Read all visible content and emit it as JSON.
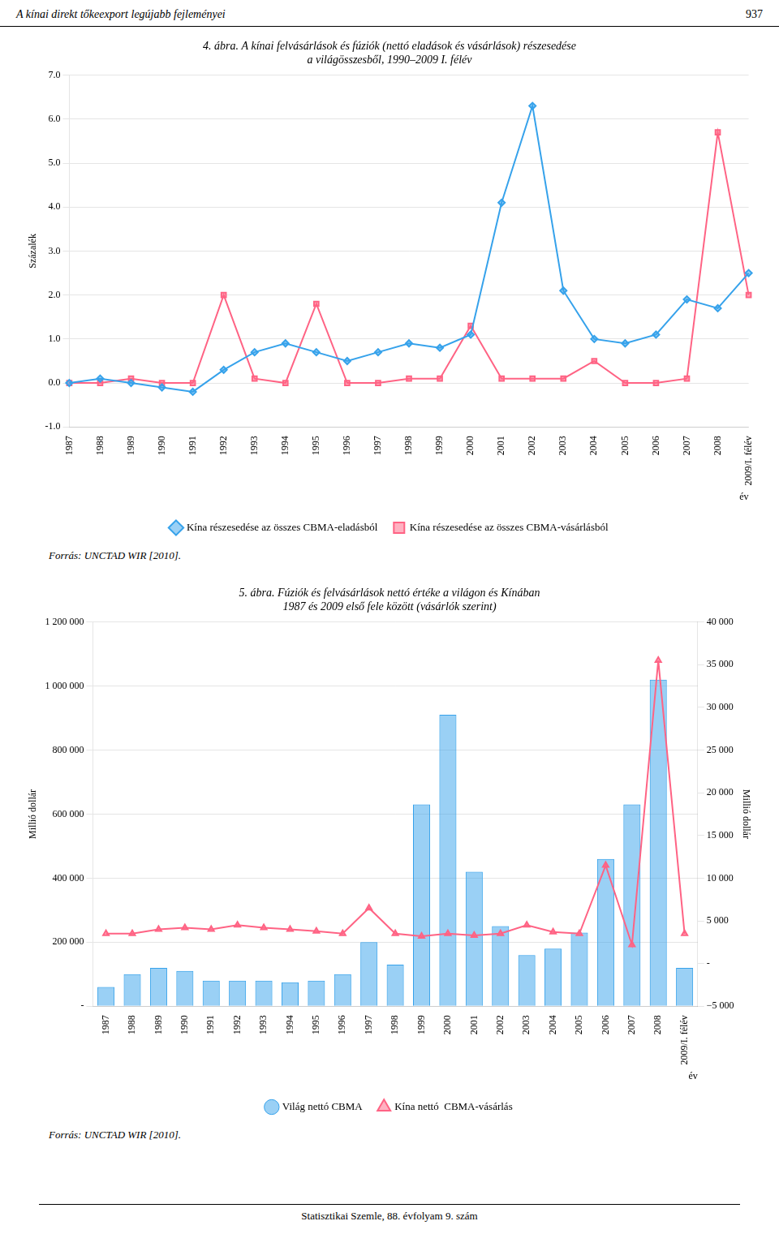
{
  "header": [
    "A kínai direkt tőkeexport legújabb fejleményei",
    "937"
  ],
  "footer": "Statisztikai Szemle, 88. évfolyam 9. szám",
  "chart_data": [
    {
      "type": "line",
      "title": [
        "4. ábra. A kínai felvásárlások és fúziók (nettó eladások és vásárlások) részesedése",
        "a világösszesből, 1990–2009 I. félév"
      ],
      "ylabel": "Százalék",
      "xlabel": "év",
      "categories": [
        "1987",
        "1988",
        "1989",
        "1990",
        "1991",
        "1992",
        "1993",
        "1994",
        "1995",
        "1996",
        "1997",
        "1998",
        "1999",
        "2000",
        "2001",
        "2002",
        "2003",
        "2004",
        "2005",
        "2006",
        "2007",
        "2008",
        "2009/I. félév"
      ],
      "series": [
        {
          "name": "Kína részesedése az összes CBMA-eladásból",
          "marker": "diamond",
          "values": [
            0.0,
            0.1,
            0.0,
            -0.1,
            -0.2,
            0.3,
            0.7,
            0.9,
            0.7,
            0.5,
            0.7,
            0.9,
            0.8,
            1.1,
            4.1,
            6.3,
            2.1,
            1.0,
            0.9,
            1.1,
            1.9,
            1.7,
            2.5
          ]
        },
        {
          "name": "Kína részesedése az összes CBMA-vásárlásból",
          "marker": "square",
          "values": [
            0.0,
            0.0,
            0.1,
            0.0,
            0.0,
            2.0,
            0.1,
            0.0,
            1.8,
            0.0,
            0.0,
            0.1,
            0.1,
            1.3,
            0.1,
            0.1,
            0.1,
            0.5,
            0.0,
            0.0,
            0.1,
            5.7,
            2.0
          ]
        }
      ],
      "ylim": [
        -1.0,
        7.0
      ],
      "yticks": [
        {
          "value": -1.0,
          "label": "-1.0"
        },
        {
          "value": 0.0,
          "label": "0.0"
        },
        {
          "value": 1.0,
          "label": "1.0"
        },
        {
          "value": 2.0,
          "label": "2.0"
        },
        {
          "value": 3.0,
          "label": "3.0"
        },
        {
          "value": 4.0,
          "label": "4.0"
        },
        {
          "value": 5.0,
          "label": "5.0"
        },
        {
          "value": 6.0,
          "label": "6.0"
        },
        {
          "value": 7.0,
          "label": "7.0"
        }
      ],
      "grid": true,
      "legend": "bottom",
      "annotations": [
        "Forrás: UNCTAD WIR [2010]."
      ]
    },
    {
      "type": "bar",
      "title": [
        "5. ábra. Fúziók és felvásárlások nettó értéke a világon és Kínában",
        "1987 és 2009 első fele között (vásárlók szerint)"
      ],
      "ylabel": "Millió dollár",
      "y2label": "Millió dollár",
      "xlabel": "év",
      "categories": [
        "1987",
        "1988",
        "1989",
        "1990",
        "1991",
        "1992",
        "1993",
        "1994",
        "1995",
        "1996",
        "1997",
        "1998",
        "1999",
        "2000",
        "2001",
        "2002",
        "2003",
        "2004",
        "2005",
        "2006",
        "2007",
        "2008",
        "2009/I. félév"
      ],
      "series": [
        {
          "name": "Világ nettó CBMA",
          "type": "bar",
          "values": [
            60000,
            100000,
            120000,
            110000,
            80000,
            80000,
            80000,
            75000,
            80000,
            100000,
            200000,
            130000,
            630000,
            910000,
            420000,
            250000,
            160000,
            180000,
            230000,
            460000,
            630000,
            1020000,
            120000
          ]
        },
        {
          "name": "Kína nettó  CBMA-vásárlás",
          "type": "line",
          "axis": "y2",
          "marker": "triangle",
          "values": [
            3500,
            3500,
            4000,
            4200,
            4000,
            4500,
            4200,
            4000,
            3800,
            3500,
            6500,
            3500,
            3200,
            3500,
            3300,
            3500,
            4500,
            3700,
            3500,
            11500,
            2200,
            35500,
            3500
          ]
        }
      ],
      "ylim": [
        0,
        1200000
      ],
      "yticks": [
        {
          "value": 0,
          "label": "-"
        },
        {
          "value": 200000,
          "label": "200 000"
        },
        {
          "value": 400000,
          "label": "400 000"
        },
        {
          "value": 600000,
          "label": "600 000"
        },
        {
          "value": 800000,
          "label": "800 000"
        },
        {
          "value": 1000000,
          "label": "1 000 000"
        },
        {
          "value": 1200000,
          "label": "1 200 000"
        }
      ],
      "y2lim": [
        -5000,
        40000
      ],
      "y2ticks": [
        {
          "value": -5000,
          "label": "−5 000"
        },
        {
          "value": 0,
          "label": "-"
        },
        {
          "value": 5000,
          "label": "5 000"
        },
        {
          "value": 10000,
          "label": "10 000"
        },
        {
          "value": 15000,
          "label": "15 000"
        },
        {
          "value": 20000,
          "label": "20 000"
        },
        {
          "value": 25000,
          "label": "25 000"
        },
        {
          "value": 30000,
          "label": "30 000"
        },
        {
          "value": 35000,
          "label": "35 000"
        },
        {
          "value": 40000,
          "label": "40 000"
        }
      ],
      "grid": true,
      "legend": "bottom",
      "annotations": [
        "Forrás: UNCTAD WIR [2010]."
      ]
    }
  ]
}
